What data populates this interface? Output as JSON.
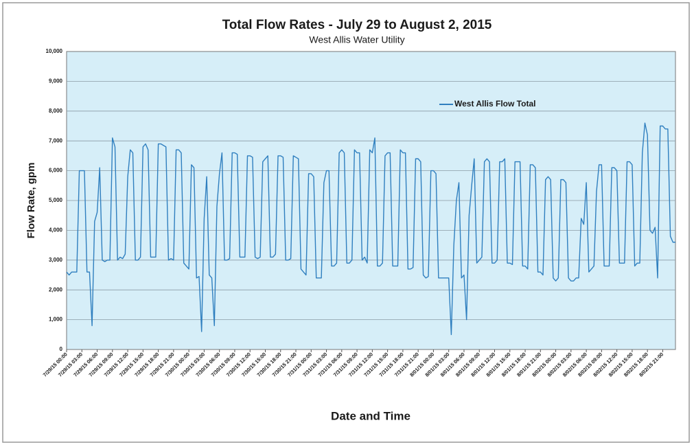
{
  "chart_data": {
    "type": "line",
    "title": "Total Flow Rates - July 29 to August 2, 2015",
    "subtitle": "West Allis Water Utility",
    "xlabel": "Date and Time",
    "ylabel": "Flow Rate, gpm",
    "ylim": [
      0,
      10000
    ],
    "yticks": [
      0,
      {
        "value": 1000,
        "label": "1,000"
      },
      {
        "value": 2000,
        "label": "2,000"
      },
      {
        "value": 3000,
        "label": "3,000"
      },
      {
        "value": 4000,
        "label": "4,000"
      },
      {
        "value": 5000,
        "label": "5,000"
      },
      {
        "value": 6000,
        "label": "6,000"
      },
      {
        "value": 7000,
        "label": "7,000"
      },
      {
        "value": 8000,
        "label": "8,000"
      },
      {
        "value": 9000,
        "label": "9,000"
      },
      {
        "value": 10000,
        "label": "10,000"
      }
    ],
    "grid": true,
    "legend": "upper right",
    "categories": [
      "7/29/15 00:00",
      null,
      null,
      null,
      null,
      null,
      "7/29/15 03:00",
      null,
      null,
      null,
      null,
      null,
      "7/29/15 06:00",
      null,
      null,
      null,
      null,
      null,
      "7/29/15 09:00",
      null,
      null,
      null,
      null,
      null,
      "7/29/15 12:00",
      null,
      null,
      null,
      null,
      null,
      "7/29/15 15:00",
      null,
      null,
      null,
      null,
      null,
      "7/29/15 18:00",
      null,
      null,
      null,
      null,
      null,
      "7/29/15 21:00",
      null,
      null,
      null,
      null,
      null,
      "7/30/15 00:00",
      null,
      null,
      null,
      null,
      null,
      "7/30/15 03:00",
      null,
      null,
      null,
      null,
      null,
      "7/30/15 06:00",
      null,
      null,
      null,
      null,
      null,
      "7/30/15 09:00",
      null,
      null,
      null,
      null,
      null,
      "7/30/15 12:00",
      null,
      null,
      null,
      null,
      null,
      "7/30/15 15:00",
      null,
      null,
      null,
      null,
      null,
      "7/30/15 18:00",
      null,
      null,
      null,
      null,
      null,
      "7/30/15 21:00",
      null,
      null,
      null,
      null,
      null,
      "7/31/15 00:00",
      null,
      null,
      null,
      null,
      null,
      "7/31/15 03:00",
      null,
      null,
      null,
      null,
      null,
      "7/31/15 06:00",
      null,
      null,
      null,
      null,
      null,
      "7/31/15 09:00",
      null,
      null,
      null,
      null,
      null,
      "7/31/15 12:00",
      null,
      null,
      null,
      null,
      null,
      "7/31/15 15:00",
      null,
      null,
      null,
      null,
      null,
      "7/31/15 18:00",
      null,
      null,
      null,
      null,
      null,
      "7/31/15 21:00",
      null,
      null,
      null,
      null,
      null,
      "8/01/15 00:00",
      null,
      null,
      null,
      null,
      null,
      "8/01/15 03:00",
      null,
      null,
      null,
      null,
      null,
      "8/01/15 06:00",
      null,
      null,
      null,
      null,
      null,
      "8/01/15 09:00",
      null,
      null,
      null,
      null,
      null,
      "8/01/15 12:00",
      null,
      null,
      null,
      null,
      null,
      "8/01/15 15:00",
      null,
      null,
      null,
      null,
      null,
      "8/01/15 18:00",
      null,
      null,
      null,
      null,
      null,
      "8/01/15 21:00",
      null,
      null,
      null,
      null,
      null,
      "8/02/15 00:00",
      null,
      null,
      null,
      null,
      null,
      "8/02/15 03:00",
      null,
      null,
      null,
      null,
      null,
      "8/02/15 06:00",
      null,
      null,
      null,
      null,
      null,
      "8/02/15 09:00",
      null,
      null,
      null,
      null,
      null,
      "8/02/15 12:00",
      null,
      null,
      null,
      null,
      null,
      "8/02/15 15:00",
      null,
      null,
      null,
      null,
      null,
      "8/02/15 18:00",
      null,
      null,
      null,
      null,
      null,
      "8/02/15 21:00",
      null,
      null,
      null,
      null,
      null
    ],
    "series": [
      {
        "name": "West Allis Flow Total",
        "color": "#2f7fbf",
        "values": [
          2600,
          2500,
          2600,
          2600,
          2600,
          6000,
          6000,
          6000,
          2600,
          2600,
          800,
          4300,
          4600,
          6100,
          3000,
          2950,
          3000,
          3000,
          7100,
          6800,
          3000,
          3100,
          3050,
          3200,
          5800,
          6700,
          6600,
          3000,
          3000,
          3100,
          6800,
          6900,
          6700,
          3100,
          3100,
          3100,
          6900,
          6900,
          6850,
          6800,
          3000,
          3050,
          3000,
          6700,
          6700,
          6600,
          2900,
          2800,
          2700,
          6200,
          6100,
          2400,
          2450,
          600,
          4400,
          5800,
          2500,
          2400,
          800,
          4800,
          5900,
          6600,
          3000,
          3000,
          3050,
          6600,
          6600,
          6550,
          3100,
          3100,
          3100,
          6500,
          6500,
          6450,
          3100,
          3050,
          3100,
          6300,
          6400,
          6500,
          3100,
          3100,
          3200,
          6500,
          6500,
          6450,
          3000,
          3000,
          3050,
          6500,
          6450,
          6400,
          2700,
          2600,
          2500,
          5900,
          5900,
          5800,
          2400,
          2400,
          2400,
          5600,
          6000,
          6000,
          2800,
          2800,
          2900,
          6600,
          6700,
          6600,
          2900,
          2900,
          3000,
          6700,
          6600,
          6600,
          3000,
          3100,
          2900,
          6700,
          6600,
          7100,
          2800,
          2800,
          2900,
          6500,
          6600,
          6600,
          2800,
          2800,
          2800,
          6700,
          6600,
          6600,
          2700,
          2700,
          2750,
          6400,
          6400,
          6300,
          2500,
          2400,
          2450,
          6000,
          6000,
          5900,
          2400,
          2400,
          2400,
          2400,
          2400,
          500,
          3500,
          5000,
          5600,
          2400,
          2500,
          1000,
          4500,
          5500,
          6400,
          2900,
          3000,
          3100,
          6300,
          6400,
          6300,
          2900,
          2900,
          3000,
          6300,
          6300,
          6400,
          2900,
          2900,
          2850,
          6300,
          6300,
          6300,
          2800,
          2800,
          2700,
          6200,
          6200,
          6100,
          2600,
          2600,
          2500,
          5700,
          5800,
          5700,
          2400,
          2300,
          2400,
          5700,
          5700,
          5600,
          2400,
          2300,
          2300,
          2400,
          2400,
          4400,
          4200,
          5600,
          2600,
          2700,
          2800,
          5300,
          6200,
          6200,
          2800,
          2800,
          2800,
          6100,
          6100,
          6000,
          2900,
          2900,
          2900,
          6300,
          6300,
          6200,
          2800,
          2900,
          2900,
          6600,
          7600,
          7200,
          4000,
          3900,
          4100,
          2400,
          7500,
          7500,
          7400,
          7400,
          3800,
          3600,
          3600
        ]
      }
    ]
  }
}
